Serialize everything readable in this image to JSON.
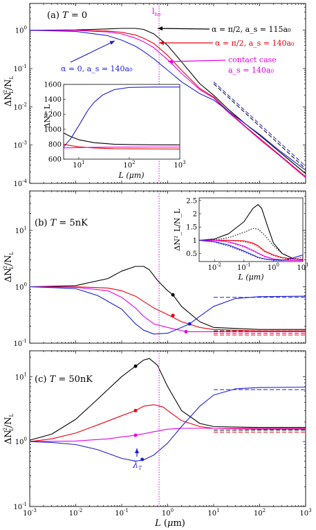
{
  "colors": {
    "black": "#000000",
    "red": "#e8000b",
    "magenta": "#e600e6",
    "blue": "#1f1fd6"
  },
  "chart_data": [
    {
      "type": "line",
      "panel": "(a)",
      "title": "T = 0",
      "xlabel": "L (μm)",
      "ylabel": "ΔN_L²/N_L",
      "xscale": "log",
      "yscale": "log",
      "xlim": [
        0.001,
        1000
      ],
      "ylim": [
        0.0001,
        5
      ],
      "x_ticks": [
        "10^-3",
        "10^-2",
        "10^-1",
        "10^0",
        "10^1",
        "10^2",
        "10^3"
      ],
      "y_ticks": [
        "10^0",
        "10^-1",
        "10^-2",
        "10^-3",
        "10^-4"
      ],
      "vline": {
        "x": 0.65,
        "label": "l_ho"
      },
      "series": [
        {
          "name": "α = π/2, a_s = 115a₀",
          "color": "black",
          "x": [
            0.001,
            0.01,
            0.05,
            0.1,
            0.2,
            0.3,
            0.5,
            1,
            2,
            5,
            10,
            20,
            50,
            100,
            300,
            1000
          ],
          "y": [
            1.0,
            1.02,
            1.08,
            1.12,
            1.12,
            1.05,
            0.8,
            0.4,
            0.15,
            0.04,
            0.02,
            0.009,
            0.0035,
            0.0018,
            0.0006,
            0.00018
          ]
        },
        {
          "name": "α = π/2, a_s = 140a₀",
          "color": "red",
          "x": [
            0.001,
            0.01,
            0.05,
            0.1,
            0.2,
            0.3,
            0.5,
            1,
            2,
            5,
            10,
            20,
            50,
            100,
            300,
            1000
          ],
          "y": [
            1.0,
            1.0,
            0.95,
            0.88,
            0.75,
            0.62,
            0.45,
            0.22,
            0.09,
            0.03,
            0.018,
            0.008,
            0.003,
            0.0015,
            0.0005,
            0.00015
          ]
        },
        {
          "name": "contact case a_s = 140a₀",
          "color": "magenta",
          "x": [
            0.001,
            0.01,
            0.05,
            0.1,
            0.2,
            0.3,
            0.5,
            1,
            2,
            5,
            10,
            20,
            50,
            100,
            300,
            1000
          ],
          "y": [
            1.0,
            0.99,
            0.9,
            0.8,
            0.62,
            0.5,
            0.35,
            0.17,
            0.075,
            0.028,
            0.017,
            0.0075,
            0.0029,
            0.0014,
            0.00048,
            0.00014
          ]
        },
        {
          "name": "α = 0, a_s = 140a₀",
          "color": "blue",
          "x": [
            0.001,
            0.01,
            0.05,
            0.1,
            0.2,
            0.3,
            0.5,
            1,
            2,
            5,
            10,
            20,
            50,
            100,
            300,
            1000
          ],
          "y": [
            1.0,
            0.93,
            0.72,
            0.55,
            0.38,
            0.28,
            0.18,
            0.09,
            0.045,
            0.022,
            0.015,
            0.008,
            0.0035,
            0.0019,
            0.00065,
            0.00022
          ]
        }
      ],
      "annotations": [
        {
          "text": "α = π/2, a_s = 115a₀",
          "color": "black"
        },
        {
          "text": "α = π/2, a_s = 140a₀",
          "color": "red"
        },
        {
          "text": "contact case",
          "color": "magenta"
        },
        {
          "text": "a_s = 140a₀",
          "color": "magenta"
        },
        {
          "text": "α = 0, a_s = 140a₀",
          "color": "blue"
        }
      ],
      "inset": {
        "xlabel": "L (μm)",
        "ylabel": "ΔN_L²",
        "xscale": "log",
        "xlim": [
          5,
          1000
        ],
        "ylim": [
          600,
          1600
        ],
        "x_ticks": [
          "10^1",
          "10^2",
          "10^3"
        ],
        "y_ticks": [
          "600",
          "800",
          "1000",
          "1200",
          "1400",
          "1600"
        ],
        "series": [
          {
            "color": "black",
            "x": [
              5,
              7,
              10,
              20,
              50,
              100,
              300,
              1000
            ],
            "y": [
              950,
              900,
              860,
              820,
              800,
              795,
              792,
              790
            ]
          },
          {
            "color": "red",
            "x": [
              5,
              7,
              10,
              20,
              50,
              100,
              300,
              1000
            ],
            "y": [
              800,
              780,
              765,
              750,
              740,
              738,
              737,
              736
            ]
          },
          {
            "color": "magenta",
            "x": [
              5,
              7,
              10,
              20,
              50,
              100,
              300,
              1000
            ],
            "y": [
              750,
              752,
              755,
              758,
              760,
              761,
              762,
              762
            ]
          },
          {
            "color": "blue",
            "x": [
              5,
              7,
              10,
              15,
              20,
              30,
              50,
              100,
              300,
              1000
            ],
            "y": [
              760,
              880,
              1050,
              1250,
              1360,
              1460,
              1530,
              1560,
              1565,
              1565
            ]
          }
        ]
      }
    },
    {
      "type": "line",
      "panel": "(b)",
      "title": "T = 5nK",
      "xlabel": "L (μm)",
      "ylabel": "ΔN_L²/N_L",
      "xscale": "log",
      "yscale": "log",
      "xlim": [
        0.001,
        1000
      ],
      "ylim": [
        0.1,
        50
      ],
      "x_ticks": [
        "10^-3",
        "10^-2",
        "10^-1",
        "10^0",
        "10^1",
        "10^2",
        "10^3"
      ],
      "y_ticks": [
        "10^1",
        "10^0",
        "10^-1"
      ],
      "vline": {
        "x": 0.65
      },
      "series": [
        {
          "color": "black",
          "x": [
            0.001,
            0.01,
            0.05,
            0.1,
            0.2,
            0.3,
            0.4,
            0.6,
            1,
            1.3,
            2,
            5,
            10,
            100,
            1000
          ],
          "y": [
            1.0,
            1.05,
            1.4,
            1.9,
            2.3,
            2.3,
            2.0,
            1.3,
            0.85,
            0.72,
            0.45,
            0.24,
            0.19,
            0.175,
            0.175
          ]
        },
        {
          "color": "red",
          "x": [
            0.001,
            0.01,
            0.05,
            0.1,
            0.2,
            0.3,
            0.5,
            1,
            2,
            5,
            10,
            100,
            1000
          ],
          "y": [
            1.0,
            1.0,
            0.95,
            0.85,
            0.68,
            0.55,
            0.42,
            0.32,
            0.24,
            0.19,
            0.175,
            0.165,
            0.165
          ]
        },
        {
          "color": "magenta",
          "x": [
            0.001,
            0.01,
            0.05,
            0.1,
            0.2,
            0.3,
            0.5,
            1,
            2.5,
            5,
            10,
            100,
            1000
          ],
          "y": [
            1.0,
            0.98,
            0.85,
            0.65,
            0.42,
            0.3,
            0.22,
            0.19,
            0.16,
            0.16,
            0.16,
            0.16,
            0.16
          ]
        },
        {
          "color": "blue",
          "x": [
            0.001,
            0.01,
            0.03,
            0.1,
            0.2,
            0.3,
            0.5,
            1,
            2,
            3,
            5,
            10,
            30,
            100,
            1000
          ],
          "y": [
            1.0,
            0.93,
            0.7,
            0.4,
            0.22,
            0.17,
            0.145,
            0.15,
            0.19,
            0.22,
            0.3,
            0.45,
            0.62,
            0.67,
            0.68
          ]
        }
      ],
      "markers": [
        {
          "color": "black",
          "x": 1.3,
          "y": 0.72
        },
        {
          "color": "red",
          "x": 1.3,
          "y": 0.31
        },
        {
          "color": "magenta",
          "x": 2.5,
          "y": 0.16
        },
        {
          "color": "blue",
          "x": 3.0,
          "y": 0.22
        }
      ],
      "inset": {
        "xlabel": "L (μm)",
        "ylabel": "ΔN_L²/N_L",
        "xscale": "log",
        "xlim": [
          0.003,
          10
        ],
        "ylim": [
          0.2,
          2.6
        ],
        "x_ticks": [
          "10^-2",
          "10^-1",
          "10^0",
          "10^1"
        ],
        "y_ticks": [
          "0.5",
          "1",
          "1.5",
          "2",
          "2.5"
        ],
        "series": [
          {
            "color": "black",
            "x": [
              0.003,
              0.01,
              0.03,
              0.1,
              0.2,
              0.3,
              0.4,
              0.6,
              1,
              2,
              5,
              10
            ],
            "y": [
              1.0,
              1.05,
              1.25,
              1.7,
              2.2,
              2.35,
              2.2,
              1.6,
              0.9,
              0.5,
              0.3,
              0.28
            ]
          },
          {
            "color": "black",
            "style": "dotted",
            "x": [
              0.003,
              0.01,
              0.03,
              0.1,
              0.2,
              0.3,
              0.5,
              1,
              2,
              5,
              10
            ],
            "y": [
              1.0,
              1.02,
              1.1,
              1.3,
              1.45,
              1.42,
              1.2,
              0.8,
              0.5,
              0.3,
              0.26
            ]
          },
          {
            "color": "red",
            "x": [
              0.003,
              0.01,
              0.03,
              0.1,
              0.2,
              0.3,
              0.5,
              1,
              2,
              5,
              10
            ],
            "y": [
              1.0,
              1.0,
              1.0,
              0.98,
              0.9,
              0.8,
              0.6,
              0.45,
              0.35,
              0.3,
              0.28
            ]
          },
          {
            "color": "red",
            "style": "dotted",
            "x": [
              0.003,
              0.01,
              0.03,
              0.1,
              0.2,
              0.3,
              0.5,
              1,
              2,
              5,
              10
            ],
            "y": [
              1.0,
              1.0,
              1.0,
              0.95,
              0.86,
              0.76,
              0.57,
              0.42,
              0.33,
              0.28,
              0.27
            ]
          },
          {
            "color": "magenta",
            "x": [
              0.003,
              0.01,
              0.03,
              0.1,
              0.2,
              0.3,
              0.5,
              1,
              2,
              5,
              10
            ],
            "y": [
              1.0,
              1.0,
              0.95,
              0.78,
              0.62,
              0.52,
              0.4,
              0.3,
              0.26,
              0.24,
              0.24
            ]
          },
          {
            "color": "magenta",
            "style": "dotted",
            "x": [
              0.003,
              0.01,
              0.03,
              0.1,
              0.2,
              0.3,
              0.5,
              1,
              2,
              5,
              10
            ],
            "y": [
              1.0,
              1.0,
              0.93,
              0.75,
              0.6,
              0.5,
              0.38,
              0.29,
              0.25,
              0.24,
              0.24
            ]
          },
          {
            "color": "blue",
            "x": [
              0.003,
              0.01,
              0.03,
              0.1,
              0.2,
              0.3,
              0.5,
              1,
              2,
              3,
              5,
              10
            ],
            "y": [
              1.0,
              0.95,
              0.82,
              0.6,
              0.45,
              0.36,
              0.3,
              0.26,
              0.25,
              0.28,
              0.35,
              0.45
            ]
          },
          {
            "color": "blue",
            "style": "dotted",
            "x": [
              0.003,
              0.01,
              0.03,
              0.1,
              0.2,
              0.3,
              0.5,
              1,
              2,
              5,
              10
            ],
            "y": [
              1.0,
              0.93,
              0.78,
              0.56,
              0.42,
              0.34,
              0.29,
              0.25,
              0.24,
              0.3,
              0.38
            ]
          }
        ]
      }
    },
    {
      "type": "line",
      "panel": "(c)",
      "title": "T = 50nK",
      "xlabel": "L (μm)",
      "ylabel": "ΔN_L²/N_L",
      "xscale": "log",
      "yscale": "log",
      "xlim": [
        0.001,
        1000
      ],
      "ylim": [
        0.1,
        25
      ],
      "x_ticks": [
        "10^-3",
        "10^-2",
        "10^-1",
        "10^0",
        "10^1",
        "10^2",
        "10^3"
      ],
      "y_ticks": [
        "10^1",
        "10^0",
        "10^-1"
      ],
      "vline": {
        "x": 0.65
      },
      "series": [
        {
          "color": "black",
          "x": [
            0.001,
            0.003,
            0.01,
            0.03,
            0.1,
            0.2,
            0.3,
            0.4,
            0.6,
            1,
            2,
            5,
            10,
            100,
            1000
          ],
          "y": [
            1.05,
            1.3,
            2.2,
            4.5,
            10,
            14.5,
            18,
            19,
            15,
            7,
            3,
            1.9,
            1.7,
            1.65,
            1.65
          ]
        },
        {
          "color": "red",
          "x": [
            0.001,
            0.003,
            0.01,
            0.03,
            0.1,
            0.2,
            0.3,
            0.5,
            0.8,
            1,
            2,
            5,
            10,
            100,
            1000
          ],
          "y": [
            1.0,
            1.1,
            1.35,
            1.8,
            2.5,
            3.0,
            3.5,
            3.7,
            3.4,
            3.0,
            2.1,
            1.7,
            1.6,
            1.55,
            1.55
          ]
        },
        {
          "color": "magenta",
          "x": [
            0.001,
            0.01,
            0.05,
            0.1,
            0.2,
            0.3,
            0.5,
            1,
            2,
            5,
            10,
            100,
            1000
          ],
          "y": [
            1.0,
            1.02,
            1.1,
            1.18,
            1.25,
            1.32,
            1.42,
            1.55,
            1.6,
            1.6,
            1.6,
            1.6,
            1.6
          ]
        },
        {
          "color": "blue",
          "x": [
            0.001,
            0.003,
            0.01,
            0.03,
            0.1,
            0.2,
            0.3,
            0.5,
            1,
            2,
            5,
            10,
            30,
            100,
            1000
          ],
          "y": [
            1.0,
            0.97,
            0.9,
            0.75,
            0.55,
            0.5,
            0.52,
            0.62,
            0.95,
            1.7,
            3.5,
            5.2,
            6.5,
            6.8,
            6.9
          ]
        }
      ],
      "markers": [
        {
          "color": "black",
          "x": 0.2,
          "y": 14.5
        },
        {
          "color": "red",
          "x": 0.2,
          "y": 3.0
        },
        {
          "color": "magenta",
          "x": 0.2,
          "y": 1.25
        },
        {
          "color": "blue",
          "x": 0.28,
          "y": 0.53
        }
      ],
      "annotations": [
        {
          "text": "λ_T",
          "color": "blue"
        }
      ]
    }
  ]
}
